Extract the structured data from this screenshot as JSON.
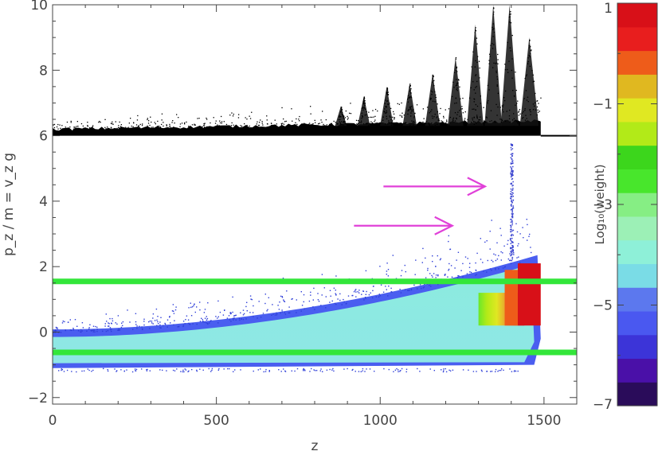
{
  "chart_data": [
    {
      "type": "scatter",
      "title": "",
      "xlabel": "z",
      "ylabel": "p_z / m = v_z g",
      "xlim": [
        0,
        1600
      ],
      "ylim": [
        -2.2,
        10
      ],
      "x_ticks": [
        "0",
        "500",
        "1000",
        "1500"
      ],
      "y_ticks": [
        "−2",
        "0",
        "2",
        "4",
        "6",
        "8",
        "10"
      ],
      "grid": false,
      "series": [
        {
          "description_role": "upper scatter band",
          "color": "#000000",
          "baseline_y": 6.0,
          "peaks": [
            {
              "z": 880,
              "y": 6.9
            },
            {
              "z": 950,
              "y": 7.2
            },
            {
              "z": 1020,
              "y": 7.5
            },
            {
              "z": 1090,
              "y": 7.6
            },
            {
              "z": 1160,
              "y": 7.9
            },
            {
              "z": 1230,
              "y": 8.4
            },
            {
              "z": 1290,
              "y": 9.4
            },
            {
              "z": 1345,
              "y": 10.0
            },
            {
              "z": 1395,
              "y": 10.0
            },
            {
              "z": 1455,
              "y": 9.0
            }
          ],
          "end_z": 1490,
          "line_to_z": 1600
        },
        {
          "description_role": "lower weighted distribution",
          "colormap": "log10 weight",
          "regions": [
            {
              "x": [
                0,
                1490
              ],
              "y_low": -1.1,
              "y_high_start": -0.1,
              "y_high_end": 2.2,
              "log10_weight": -4
            },
            {
              "x": [
                1300,
                1490
              ],
              "y_low": 0.2,
              "y_high": 2.1,
              "log10_weight_start": -2,
              "log10_weight_end": 1
            }
          ],
          "spike": {
            "z": 1400,
            "y_max": 5.8
          }
        }
      ],
      "horizontal_lines": [
        {
          "y": 1.55,
          "color": "#33e63a"
        },
        {
          "y": -0.62,
          "color": "#33e63a"
        }
      ],
      "annotations": [
        {
          "type": "arrow",
          "color": "#e040d8",
          "from": [
            1010,
            4.45
          ],
          "to": [
            1320,
            4.45
          ]
        },
        {
          "type": "arrow",
          "color": "#e040d8",
          "from": [
            920,
            3.25
          ],
          "to": [
            1220,
            3.25
          ]
        }
      ]
    },
    {
      "type": "heatmap",
      "role": "colorbar",
      "label": "Log₁₀(weight)",
      "range": [
        -7,
        1
      ],
      "tick_labels": [
        "1",
        "−1",
        "−3",
        "−5",
        "−7"
      ],
      "colors": [
        "#2a0c5a",
        "#4a10a8",
        "#3c34d8",
        "#4a58f0",
        "#5c78ee",
        "#7adce6",
        "#8ef0d8",
        "#9cf0b6",
        "#86ee84",
        "#48e62c",
        "#3cd61c",
        "#b2ea18",
        "#e0e822",
        "#e0b820",
        "#ee5c1a",
        "#e81e1e",
        "#d81018"
      ]
    }
  ]
}
